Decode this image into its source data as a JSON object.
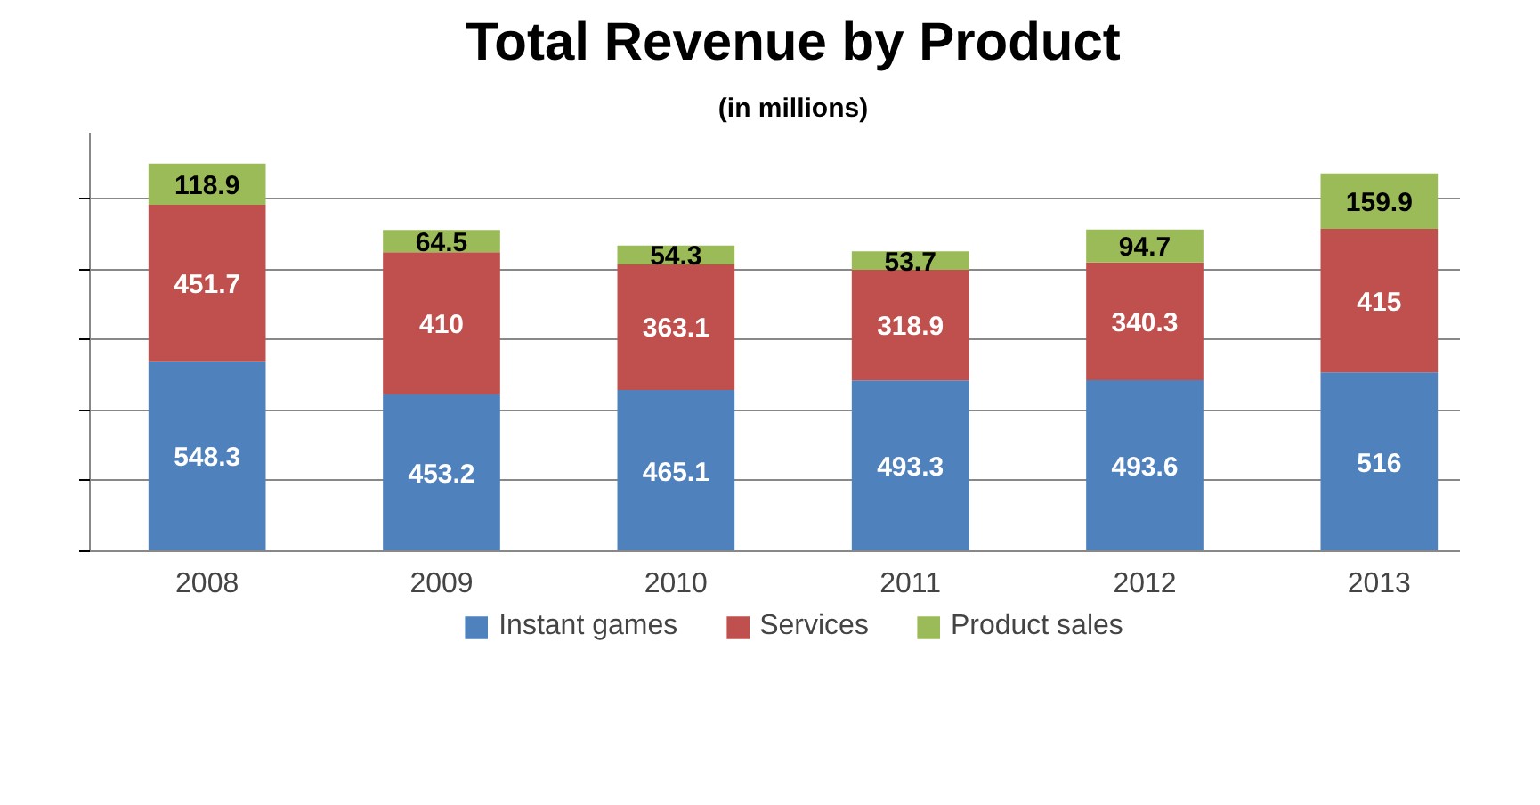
{
  "chart_data": {
    "type": "bar",
    "title": "Total Revenue by Product",
    "subtitle": "(in millions)",
    "categories": [
      "2008",
      "2009",
      "2010",
      "2011",
      "2012",
      "2013"
    ],
    "stacked": true,
    "data_labels": true,
    "grid": "y",
    "legend": "bottom",
    "tick_labels": "x",
    "series": [
      {
        "name": "Instant games",
        "color": "#4f81bd",
        "values": [
          548.3,
          453.2,
          465.1,
          493.3,
          493.6,
          516
        ]
      },
      {
        "name": "Services",
        "color": "#c0504d",
        "values": [
          451.7,
          410,
          363.1,
          318.9,
          340.3,
          415
        ]
      },
      {
        "name": "Product sales",
        "color": "#9bbb59",
        "values": [
          118.9,
          64.5,
          54.3,
          53.7,
          94.7,
          159.9
        ]
      }
    ]
  }
}
